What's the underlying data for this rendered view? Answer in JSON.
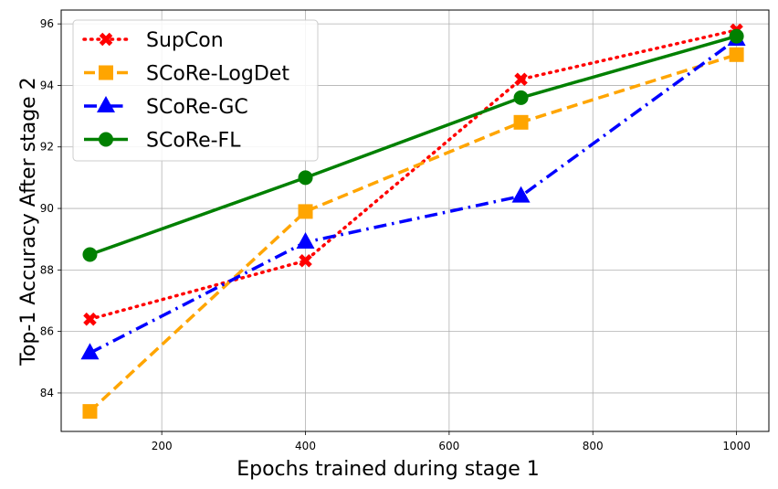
{
  "chart_data": {
    "type": "line",
    "title": "",
    "xlabel": "Epochs trained during stage 1",
    "ylabel": "Top-1 Accuracy After stage 2",
    "xlim": [
      60,
      1045
    ],
    "ylim": [
      82.75,
      96.45
    ],
    "xticks": [
      200,
      400,
      600,
      800,
      1000
    ],
    "yticks": [
      84,
      86,
      88,
      90,
      92,
      94,
      96
    ],
    "grid": true,
    "legend_position": "top-left",
    "x": [
      100,
      400,
      700,
      1000
    ],
    "series": [
      {
        "name": "SupCon",
        "values": [
          86.4,
          88.3,
          94.2,
          95.8
        ],
        "color": "#ff0000",
        "line_style": "dotted",
        "marker": "x"
      },
      {
        "name": "SCoRe-LogDet",
        "values": [
          83.4,
          89.9,
          92.8,
          95.0
        ],
        "color": "#ffa500",
        "line_style": "dashed",
        "marker": "square"
      },
      {
        "name": "SCoRe-GC",
        "values": [
          85.3,
          88.9,
          90.4,
          95.5
        ],
        "color": "#0000ff",
        "line_style": "dashdot",
        "marker": "triangle"
      },
      {
        "name": "SCoRe-FL",
        "values": [
          88.5,
          91.0,
          93.6,
          95.6
        ],
        "color": "#008000",
        "line_style": "solid",
        "marker": "circle"
      }
    ]
  }
}
